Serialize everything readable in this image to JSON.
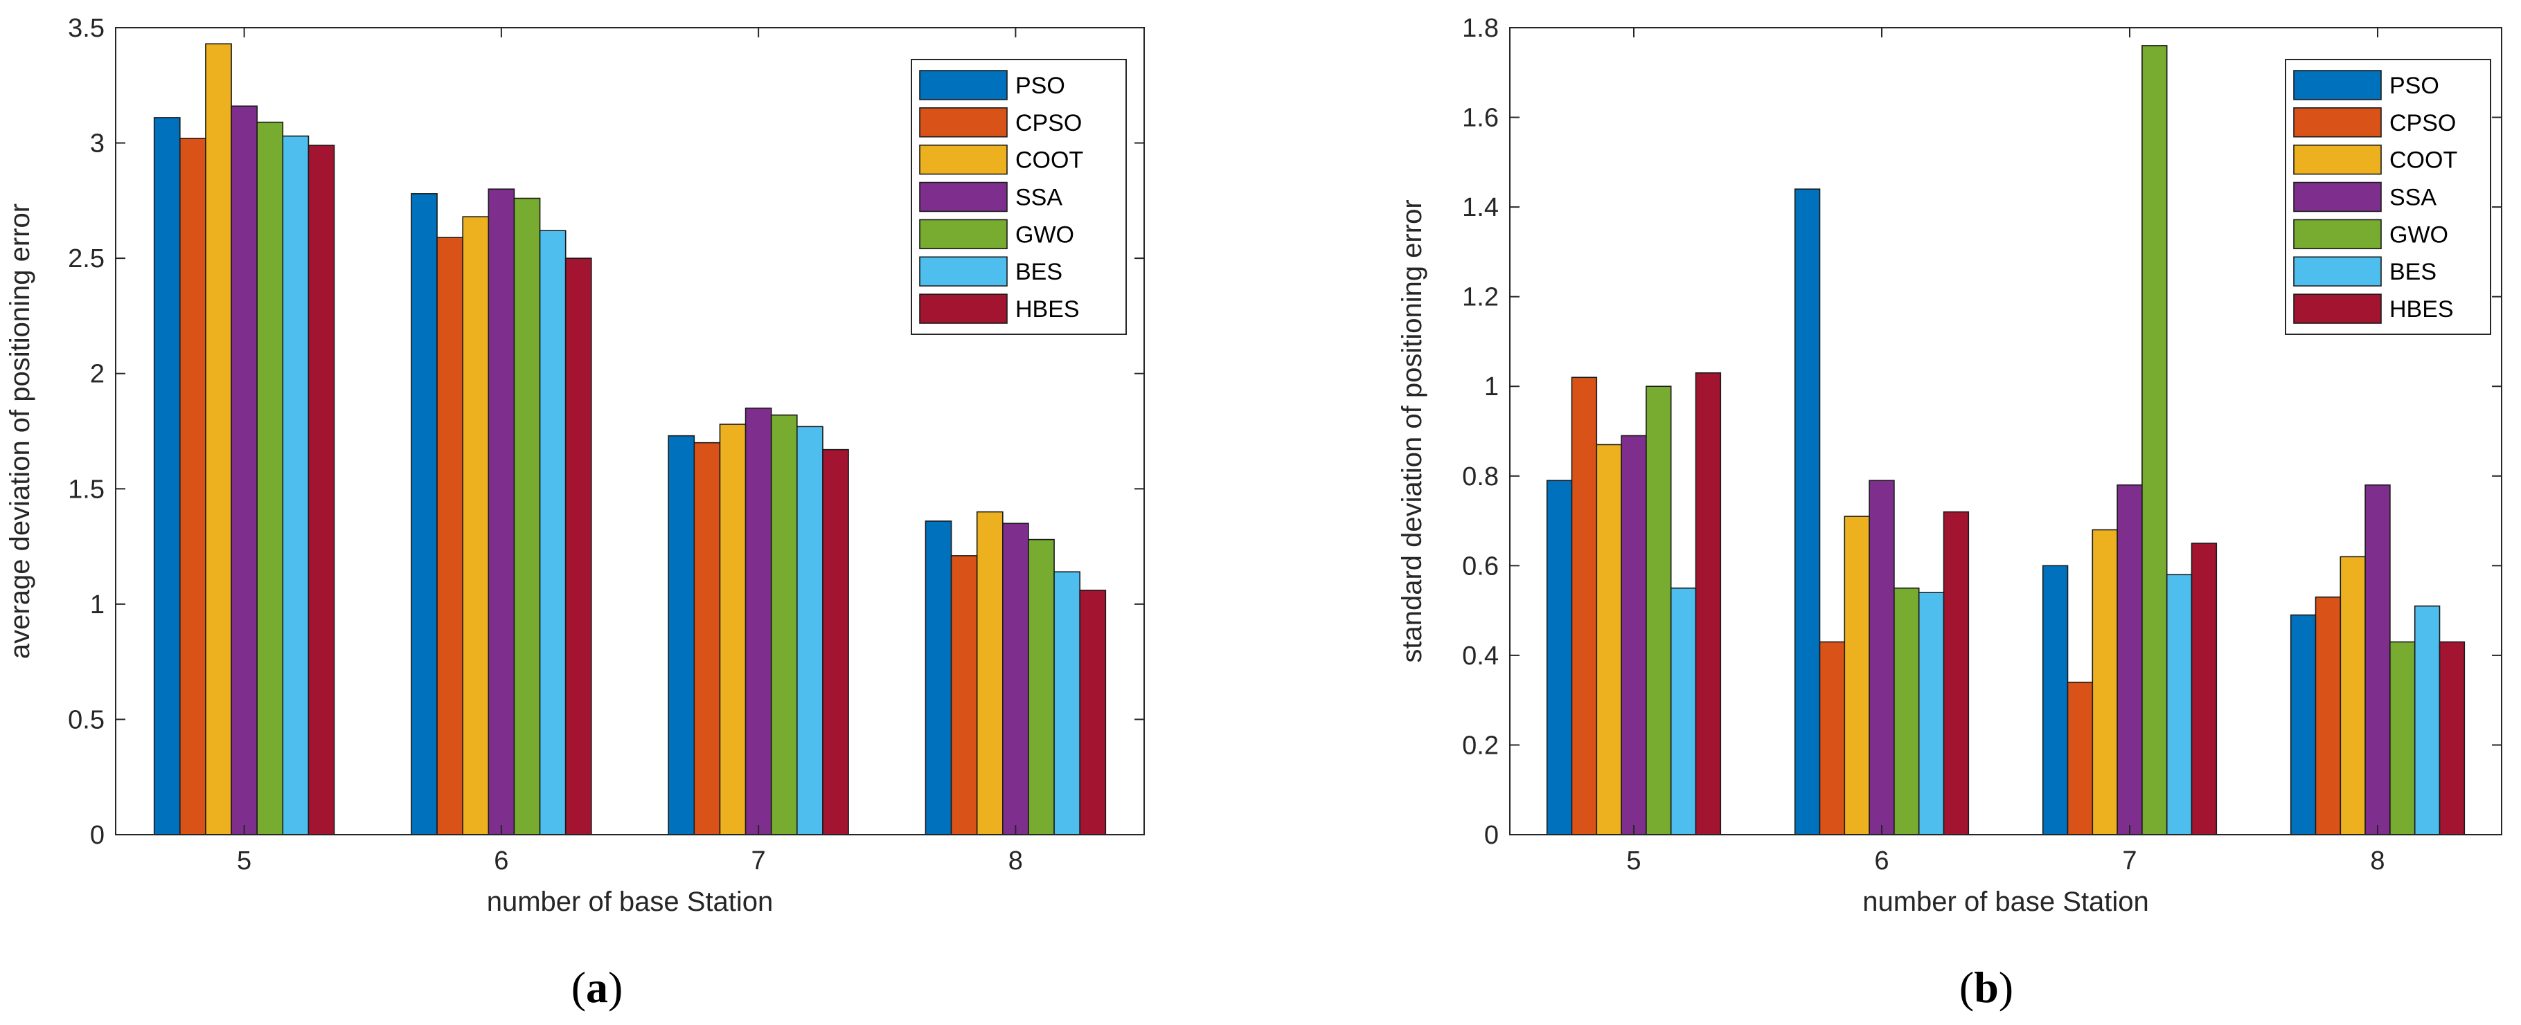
{
  "panels": [
    {
      "caption_letter": "a"
    },
    {
      "caption_letter": "b"
    }
  ],
  "chart_data": [
    {
      "type": "bar",
      "title": "",
      "xlabel": "number of base Station",
      "ylabel": "average deviation of positioning error",
      "categories": [
        "5",
        "6",
        "7",
        "8"
      ],
      "ylim": [
        0,
        3.5
      ],
      "yticks": [
        0,
        0.5,
        1,
        1.5,
        2,
        2.5,
        3,
        3.5
      ],
      "ytick_labels": [
        "0",
        "0.5",
        "1",
        "1.5",
        "2",
        "2.5",
        "3",
        "3.5"
      ],
      "legend_position": "top-right",
      "grid": false,
      "series": [
        {
          "name": "PSO",
          "color": "#0072BD",
          "values": [
            3.11,
            2.78,
            1.73,
            1.36
          ]
        },
        {
          "name": "CPSO",
          "color": "#D95319",
          "values": [
            3.02,
            2.59,
            1.7,
            1.21
          ]
        },
        {
          "name": "COOT",
          "color": "#EDB120",
          "values": [
            3.43,
            2.68,
            1.78,
            1.4
          ]
        },
        {
          "name": "SSA",
          "color": "#7E2F8E",
          "values": [
            3.16,
            2.8,
            1.85,
            1.35
          ]
        },
        {
          "name": "GWO",
          "color": "#77AC30",
          "values": [
            3.09,
            2.76,
            1.82,
            1.28
          ]
        },
        {
          "name": "BES",
          "color": "#4DBEEE",
          "values": [
            3.03,
            2.62,
            1.77,
            1.14
          ]
        },
        {
          "name": "HBES",
          "color": "#A2142F",
          "values": [
            2.99,
            2.5,
            1.67,
            1.06
          ]
        }
      ]
    },
    {
      "type": "bar",
      "title": "",
      "xlabel": "number of base Station",
      "ylabel": "standard deviation of positioning error",
      "categories": [
        "5",
        "6",
        "7",
        "8"
      ],
      "ylim": [
        0,
        1.8
      ],
      "yticks": [
        0,
        0.2,
        0.4,
        0.6,
        0.8,
        1,
        1.2,
        1.4,
        1.6,
        1.8
      ],
      "ytick_labels": [
        "0",
        "0.2",
        "0.4",
        "0.6",
        "0.8",
        "1",
        "1.2",
        "1.4",
        "1.6",
        "1.8"
      ],
      "legend_position": "top-right",
      "grid": false,
      "series": [
        {
          "name": "PSO",
          "color": "#0072BD",
          "values": [
            0.79,
            1.44,
            0.6,
            0.49
          ]
        },
        {
          "name": "CPSO",
          "color": "#D95319",
          "values": [
            1.02,
            0.43,
            0.34,
            0.53
          ]
        },
        {
          "name": "COOT",
          "color": "#EDB120",
          "values": [
            0.87,
            0.71,
            0.68,
            0.62
          ]
        },
        {
          "name": "SSA",
          "color": "#7E2F8E",
          "values": [
            0.89,
            0.79,
            0.78,
            0.78
          ]
        },
        {
          "name": "GWO",
          "color": "#77AC30",
          "values": [
            1.0,
            0.55,
            1.76,
            0.43
          ]
        },
        {
          "name": "BES",
          "color": "#4DBEEE",
          "values": [
            0.55,
            0.54,
            0.58,
            0.51
          ]
        },
        {
          "name": "HBES",
          "color": "#A2142F",
          "values": [
            1.03,
            0.72,
            0.65,
            0.43
          ]
        }
      ]
    }
  ]
}
